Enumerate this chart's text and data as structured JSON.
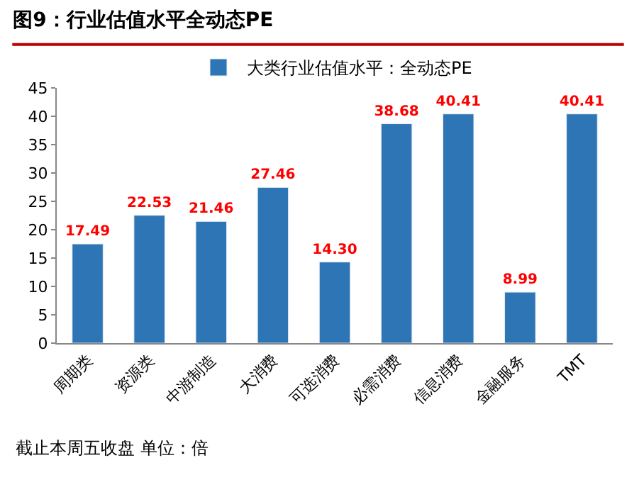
{
  "chart_data": {
    "type": "bar",
    "title": "图9：行业估值水平全动态PE",
    "categories": [
      "周期类",
      "资源类",
      "中游制造",
      "大消费",
      "可选消费",
      "必需消费",
      "信息消费",
      "金融服务",
      "TMT"
    ],
    "series": [
      {
        "name": "大类行业估值水平：全动态PE",
        "color": "#2e75b6",
        "values": [
          17.49,
          22.53,
          21.46,
          27.46,
          14.3,
          38.68,
          40.41,
          8.99,
          40.41
        ]
      }
    ],
    "value_labels": [
      "17.49",
      "22.53",
      "21.46",
      "27.46",
      "14.30",
      "38.68",
      "40.41",
      "8.99",
      "40.41"
    ],
    "ylim": [
      0,
      45
    ],
    "yticks": [
      0,
      5,
      10,
      15,
      20,
      25,
      30,
      35,
      40,
      45
    ],
    "legend": "top",
    "annotations": [
      "截止本周五收盘 单位：倍"
    ]
  }
}
